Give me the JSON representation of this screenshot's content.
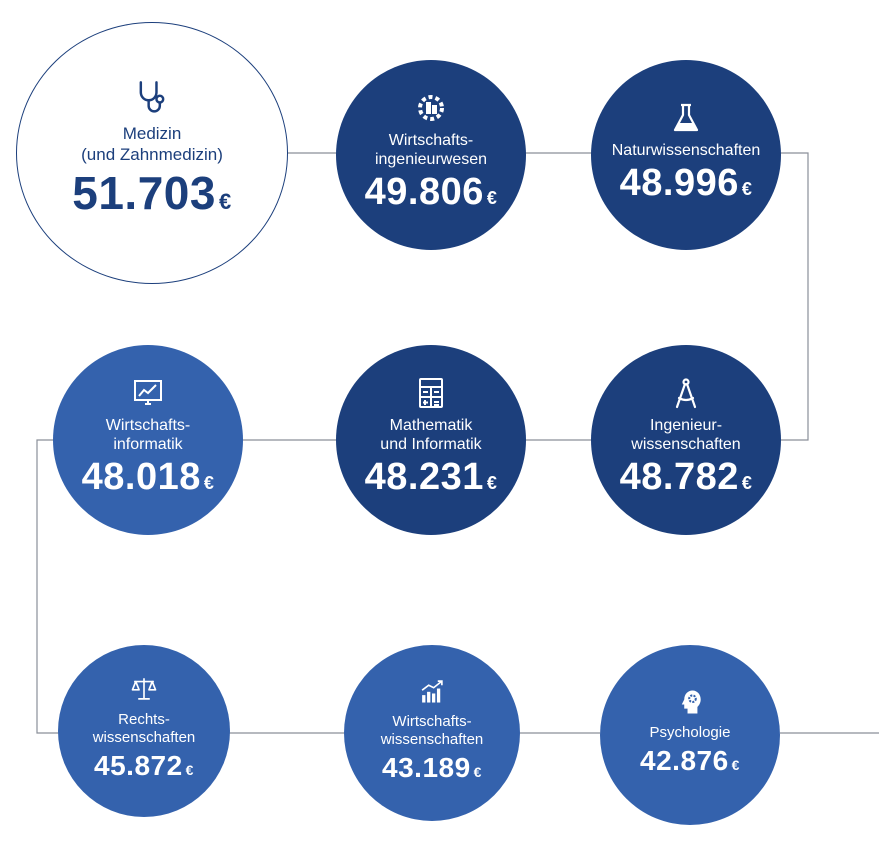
{
  "currency": "€",
  "colors": {
    "dark_blue": "#1c3f7c",
    "mid_blue": "#3462ad",
    "line": "#8a8f99"
  },
  "nodes": [
    {
      "id": "medizin",
      "icon": "stethoscope-icon",
      "label_lines": [
        "Medizin",
        "(und Zahnmedizin)"
      ],
      "value": "51.703"
    },
    {
      "id": "wirtschaftsingenieurwesen",
      "icon": "gear-building-icon",
      "label_lines": [
        "Wirtschafts-",
        "ingenieurwesen"
      ],
      "value": "49.806"
    },
    {
      "id": "naturwissenschaften",
      "icon": "flask-icon",
      "label_lines": [
        "Naturwissenschaften"
      ],
      "value": "48.996"
    },
    {
      "id": "ingenieurwissenschaften",
      "icon": "compass-icon",
      "label_lines": [
        "Ingenieur-",
        "wissenschaften"
      ],
      "value": "48.782"
    },
    {
      "id": "mathematik-informatik",
      "icon": "calculator-icon",
      "label_lines": [
        "Mathematik",
        "und Informatik"
      ],
      "value": "48.231"
    },
    {
      "id": "wirtschaftsinformatik",
      "icon": "monitor-chart-icon",
      "label_lines": [
        "Wirtschafts-",
        "informatik"
      ],
      "value": "48.018"
    },
    {
      "id": "rechtswissenschaften",
      "icon": "scales-icon",
      "label_lines": [
        "Rechts-",
        "wissenschaften"
      ],
      "value": "45.872"
    },
    {
      "id": "wirtschaftswissenschaften",
      "icon": "bar-chart-icon",
      "label_lines": [
        "Wirtschafts-",
        "wissenschaften"
      ],
      "value": "43.189"
    },
    {
      "id": "psychologie",
      "icon": "head-gear-icon",
      "label_lines": [
        "Psychologie"
      ],
      "value": "42.876"
    }
  ]
}
